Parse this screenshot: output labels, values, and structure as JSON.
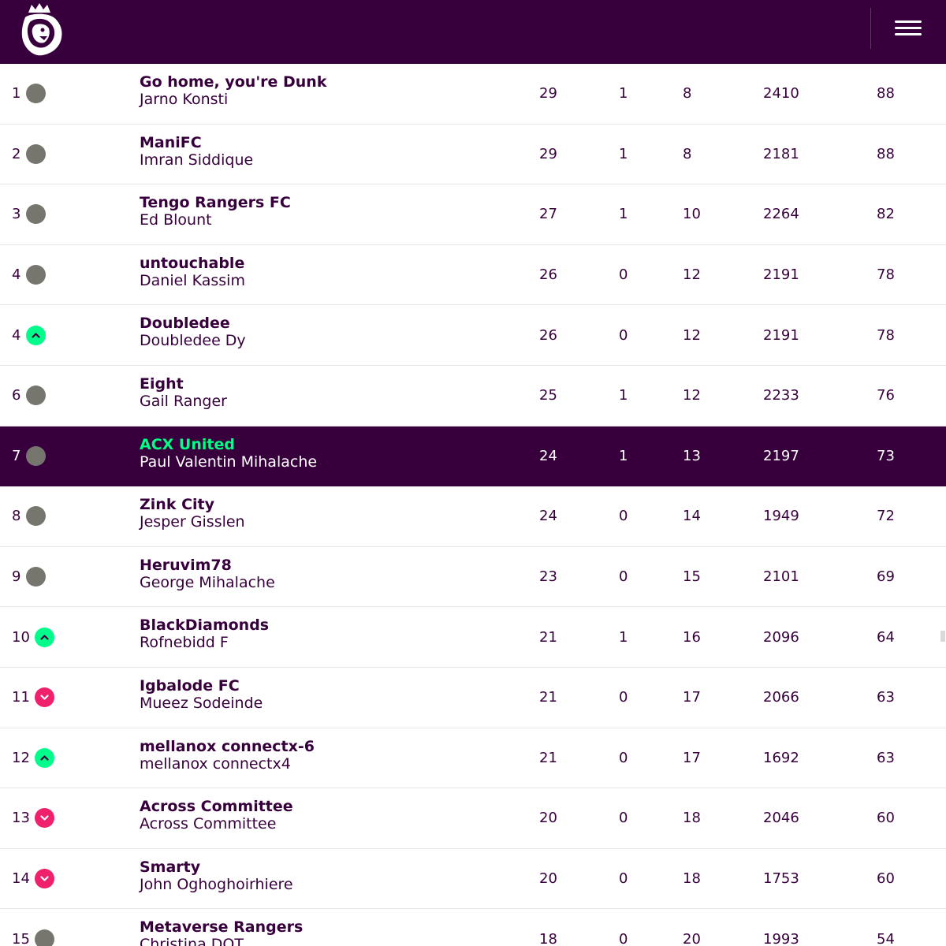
{
  "colors": {
    "brand_purple": "#37003c",
    "highlight_green": "#00ff85",
    "up_green": "#00fc8a",
    "down_pink": "#f0206d",
    "same_grey": "#76766f"
  },
  "header": {
    "logo_icon": "premier-league-lion-logo-icon",
    "menu_icon": "hamburger-menu-icon"
  },
  "standings": [
    {
      "rank": "1",
      "movement": "same",
      "team": "Go home, you're Dunk",
      "manager": "Jarno Konsti",
      "w": "29",
      "d": "1",
      "l": "8",
      "pts_for": "2410",
      "pts": "88"
    },
    {
      "rank": "2",
      "movement": "same",
      "team": "ManiFC",
      "manager": "Imran Siddique",
      "w": "29",
      "d": "1",
      "l": "8",
      "pts_for": "2181",
      "pts": "88"
    },
    {
      "rank": "3",
      "movement": "same",
      "team": "Tengo Rangers FC",
      "manager": "Ed Blount",
      "w": "27",
      "d": "1",
      "l": "10",
      "pts_for": "2264",
      "pts": "82"
    },
    {
      "rank": "4",
      "movement": "same",
      "team": "untouchable",
      "manager": "Daniel Kassim",
      "w": "26",
      "d": "0",
      "l": "12",
      "pts_for": "2191",
      "pts": "78"
    },
    {
      "rank": "4",
      "movement": "up",
      "team": "Doubledee",
      "manager": "Doubledee Dy",
      "w": "26",
      "d": "0",
      "l": "12",
      "pts_for": "2191",
      "pts": "78"
    },
    {
      "rank": "6",
      "movement": "same",
      "team": "Eight",
      "manager": "Gail Ranger",
      "w": "25",
      "d": "1",
      "l": "12",
      "pts_for": "2233",
      "pts": "76"
    },
    {
      "rank": "7",
      "movement": "same",
      "team": "ACX United",
      "manager": "Paul Valentin Mihalache",
      "w": "24",
      "d": "1",
      "l": "13",
      "pts_for": "2197",
      "pts": "73",
      "highlight": true
    },
    {
      "rank": "8",
      "movement": "same",
      "team": "Zink City",
      "manager": "Jesper Gisslen",
      "w": "24",
      "d": "0",
      "l": "14",
      "pts_for": "1949",
      "pts": "72"
    },
    {
      "rank": "9",
      "movement": "same",
      "team": "Heruvim78",
      "manager": "George Mihalache",
      "w": "23",
      "d": "0",
      "l": "15",
      "pts_for": "2101",
      "pts": "69"
    },
    {
      "rank": "10",
      "movement": "up",
      "team": "BlackDiamonds",
      "manager": "Rofnebidd F",
      "w": "21",
      "d": "1",
      "l": "16",
      "pts_for": "2096",
      "pts": "64"
    },
    {
      "rank": "11",
      "movement": "down",
      "team": "Igbalode FC",
      "manager": "Mueez Sodeinde",
      "w": "21",
      "d": "0",
      "l": "17",
      "pts_for": "2066",
      "pts": "63"
    },
    {
      "rank": "12",
      "movement": "up",
      "team": "mellanox connectx-6",
      "manager": "mellanox connectx4",
      "w": "21",
      "d": "0",
      "l": "17",
      "pts_for": "1692",
      "pts": "63"
    },
    {
      "rank": "13",
      "movement": "down",
      "team": "Across Committee",
      "manager": "Across Committee",
      "w": "20",
      "d": "0",
      "l": "18",
      "pts_for": "2046",
      "pts": "60"
    },
    {
      "rank": "14",
      "movement": "down",
      "team": "Smarty",
      "manager": "John Oghoghoirhiere",
      "w": "20",
      "d": "0",
      "l": "18",
      "pts_for": "1753",
      "pts": "60"
    },
    {
      "rank": "15",
      "movement": "same",
      "team": "Metaverse Rangers",
      "manager": "Christina DOT",
      "w": "18",
      "d": "0",
      "l": "20",
      "pts_for": "1993",
      "pts": "54"
    }
  ]
}
